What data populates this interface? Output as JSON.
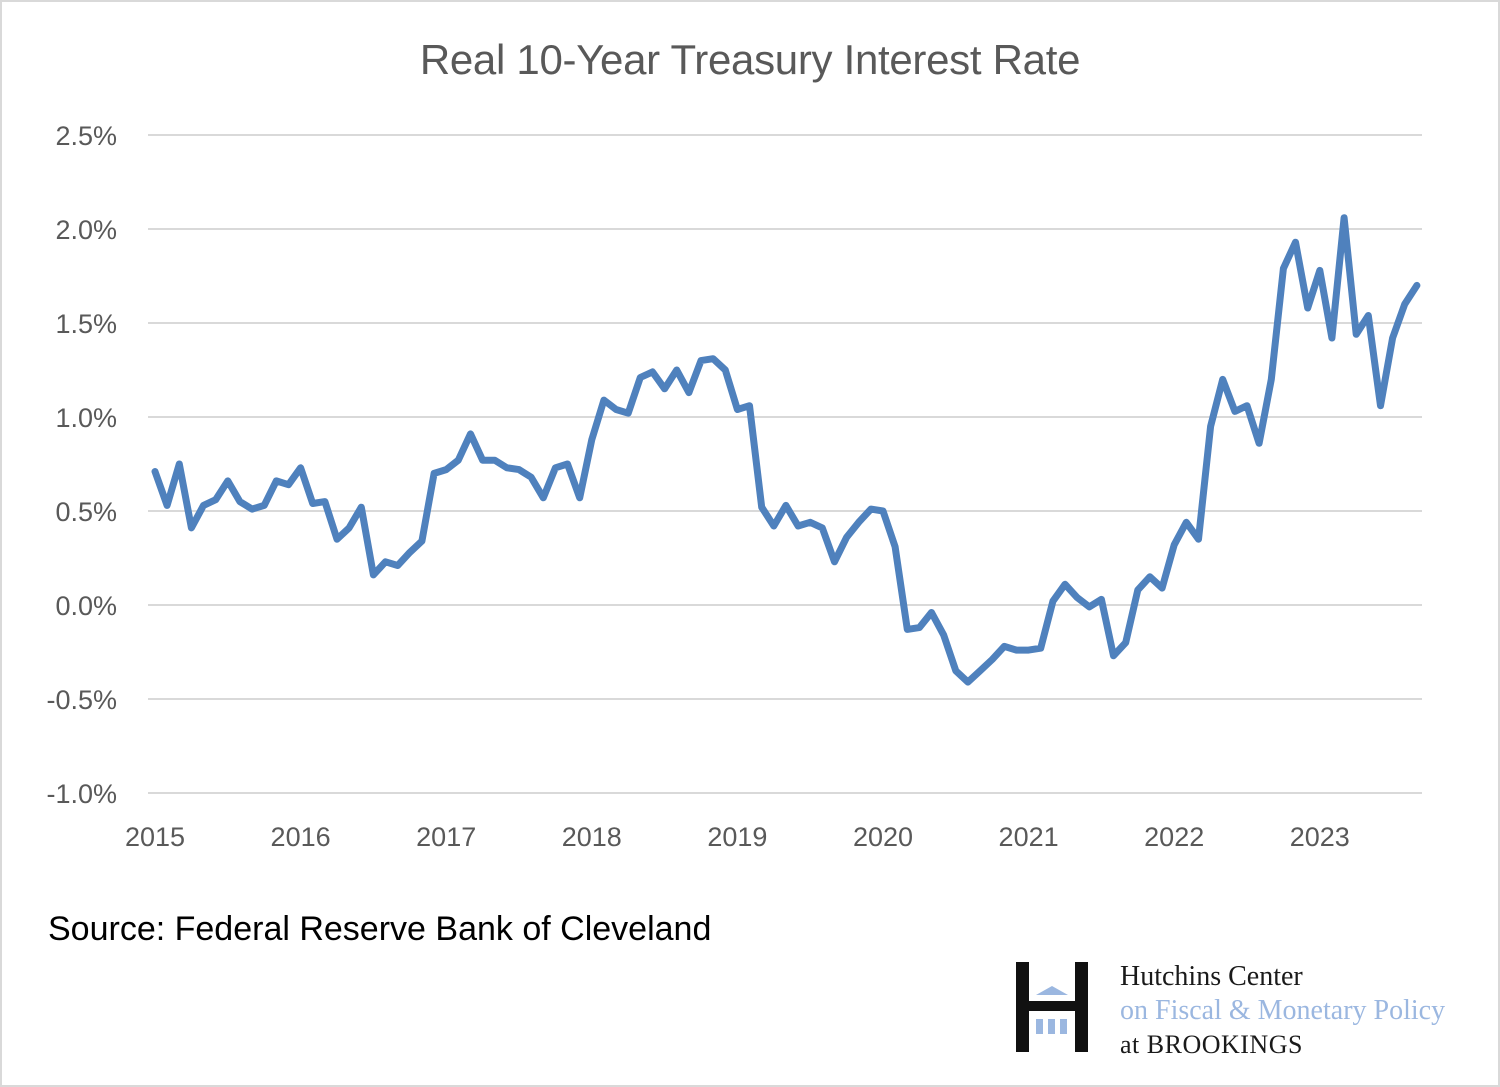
{
  "chart_data": {
    "type": "line",
    "title": "Real 10-Year Treasury Interest Rate",
    "xlabel": "",
    "ylabel": "",
    "ylim": [
      -1.0,
      2.5
    ],
    "y_ticks": [
      2.5,
      2.0,
      1.5,
      1.0,
      0.5,
      0.0,
      -0.5,
      -1.0
    ],
    "y_tick_labels": [
      "2.5%",
      "2.0%",
      "1.5%",
      "1.0%",
      "0.5%",
      "0.0%",
      "-0.5%",
      "-1.0%"
    ],
    "x_ticks": [
      2015,
      2016,
      2017,
      2018,
      2019,
      2020,
      2021,
      2022,
      2023
    ],
    "x_tick_labels": [
      "2015",
      "2016",
      "2017",
      "2018",
      "2019",
      "2020",
      "2021",
      "2022",
      "2023"
    ],
    "grid": true,
    "legend": "none",
    "line_color": "#4f81bd",
    "series": [
      {
        "name": "Real 10-Year Treasury Interest Rate",
        "frequency": "monthly",
        "start": "2015-01",
        "values": [
          0.71,
          0.53,
          0.75,
          0.41,
          0.53,
          0.56,
          0.66,
          0.55,
          0.51,
          0.53,
          0.66,
          0.64,
          0.73,
          0.54,
          0.55,
          0.35,
          0.41,
          0.52,
          0.16,
          0.23,
          0.21,
          0.28,
          0.34,
          0.7,
          0.72,
          0.77,
          0.91,
          0.77,
          0.77,
          0.73,
          0.72,
          0.68,
          0.57,
          0.73,
          0.75,
          0.57,
          0.88,
          1.09,
          1.04,
          1.02,
          1.21,
          1.24,
          1.15,
          1.25,
          1.13,
          1.3,
          1.31,
          1.25,
          1.04,
          1.06,
          0.52,
          0.42,
          0.53,
          0.42,
          0.44,
          0.41,
          0.23,
          0.36,
          0.44,
          0.51,
          0.5,
          0.31,
          -0.13,
          -0.12,
          -0.04,
          -0.16,
          -0.35,
          -0.41,
          -0.35,
          -0.29,
          -0.22,
          -0.24,
          -0.24,
          -0.23,
          0.02,
          0.11,
          0.04,
          -0.01,
          0.03,
          -0.27,
          -0.2,
          0.08,
          0.15,
          0.09,
          0.32,
          0.44,
          0.35,
          0.95,
          1.2,
          1.03,
          1.06,
          0.86,
          1.2,
          1.79,
          1.93,
          1.58,
          1.78,
          1.42,
          2.06,
          1.44,
          1.54,
          1.06,
          1.42,
          1.6,
          1.7
        ]
      }
    ]
  },
  "source_text": "Source: Federal Reserve Bank of Cleveland",
  "logo": {
    "line1": "Hutchins Center",
    "line2": "on Fiscal & Monetary Policy",
    "line3": "at BROOKINGS",
    "icon": "brookings-h-building-icon"
  }
}
